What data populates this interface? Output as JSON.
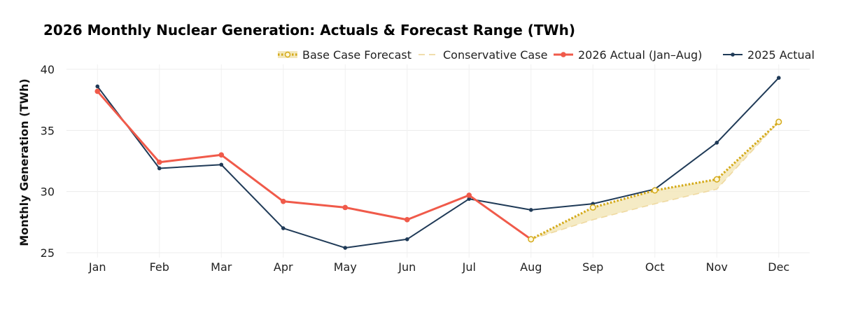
{
  "chart_data": {
    "type": "line",
    "title": "2026 Monthly Nuclear Generation: Actuals & Forecast Range (TWh)",
    "xlabel": "",
    "ylabel": "Monthly Generation (TWh)",
    "categories": [
      "Jan",
      "Feb",
      "Mar",
      "Apr",
      "May",
      "Jun",
      "Jul",
      "Aug",
      "Sep",
      "Oct",
      "Nov",
      "Dec"
    ],
    "ylim": [
      24.6,
      40.4
    ],
    "yticks": [
      25,
      30,
      35,
      40
    ],
    "grid": true,
    "legend_position": "top-right",
    "series": [
      {
        "name": "Base Case Forecast",
        "color": "#d4aa1a",
        "style": "dotted",
        "x": [
          "Aug",
          "Sep",
          "Oct",
          "Nov",
          "Dec"
        ],
        "values": [
          26.1,
          28.7,
          30.1,
          31.0,
          35.7
        ]
      },
      {
        "name": "Conservative Case",
        "color": "#efd9a0",
        "style": "dashed",
        "x": [
          "Aug",
          "Sep",
          "Oct",
          "Nov",
          "Dec"
        ],
        "values": [
          26.1,
          27.7,
          29.0,
          30.2,
          35.7
        ]
      },
      {
        "name": "2026 Actual (Jan–Aug)",
        "color": "#f05a4a",
        "style": "solid",
        "x": [
          "Jan",
          "Feb",
          "Mar",
          "Apr",
          "May",
          "Jun",
          "Jul",
          "Aug"
        ],
        "values": [
          38.2,
          32.4,
          33.0,
          29.2,
          28.7,
          27.7,
          29.7,
          26.1
        ]
      },
      {
        "name": "2025 Actual",
        "color": "#1f3a57",
        "style": "solid",
        "x": [
          "Jan",
          "Feb",
          "Mar",
          "Apr",
          "May",
          "Jun",
          "Jul",
          "Aug",
          "Sep",
          "Oct",
          "Nov",
          "Dec"
        ],
        "values": [
          38.6,
          31.9,
          32.2,
          27.0,
          25.4,
          26.1,
          29.4,
          28.5,
          29.0,
          30.2,
          34.0,
          39.3
        ]
      }
    ],
    "band_fill_color": "#f3e7bb"
  }
}
